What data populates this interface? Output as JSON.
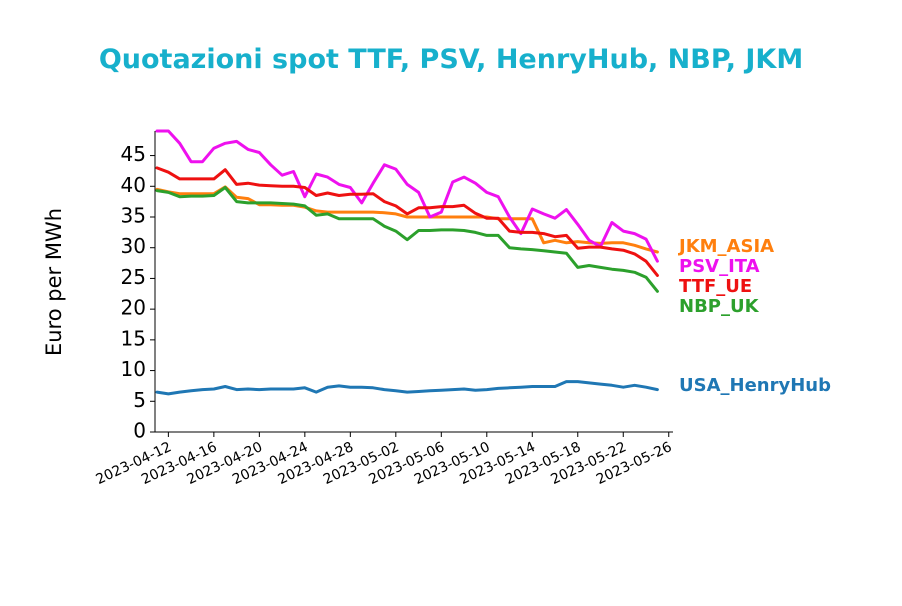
{
  "chart_data": {
    "type": "line",
    "title": "Quotazioni spot TTF, PSV, HenryHub, NBP, JKM",
    "title_color": "#17b0cc",
    "xlabel": "",
    "ylabel": "Euro per MWh",
    "ylim": [
      0,
      49
    ],
    "xlim": [
      "2023-04-11",
      "2023-05-26"
    ],
    "yticks": [
      0,
      5,
      10,
      15,
      20,
      25,
      30,
      35,
      40,
      45
    ],
    "xticks": [
      "2023-04-12",
      "2023-04-16",
      "2023-04-20",
      "2023-04-24",
      "2023-04-28",
      "2023-05-02",
      "2023-05-06",
      "2023-05-10",
      "2023-05-14",
      "2023-05-18",
      "2023-05-22",
      "2023-05-26"
    ],
    "grid": false,
    "legend": "labels at line ends (right)",
    "x": [
      "2023-04-11",
      "2023-04-12",
      "2023-04-13",
      "2023-04-14",
      "2023-04-15",
      "2023-04-16",
      "2023-04-17",
      "2023-04-18",
      "2023-04-19",
      "2023-04-20",
      "2023-04-21",
      "2023-04-22",
      "2023-04-23",
      "2023-04-24",
      "2023-04-25",
      "2023-04-26",
      "2023-04-27",
      "2023-04-28",
      "2023-04-29",
      "2023-04-30",
      "2023-05-01",
      "2023-05-02",
      "2023-05-03",
      "2023-05-04",
      "2023-05-05",
      "2023-05-06",
      "2023-05-07",
      "2023-05-08",
      "2023-05-09",
      "2023-05-10",
      "2023-05-11",
      "2023-05-12",
      "2023-05-13",
      "2023-05-14",
      "2023-05-15",
      "2023-05-16",
      "2023-05-17",
      "2023-05-18",
      "2023-05-19",
      "2023-05-20",
      "2023-05-21",
      "2023-05-22",
      "2023-05-23",
      "2023-05-24",
      "2023-05-25"
    ],
    "series": [
      {
        "name": "JKM_ASIA",
        "color": "#ff7f0e",
        "values": [
          39.5,
          39.1,
          38.8,
          38.8,
          38.8,
          38.8,
          39.9,
          38.2,
          38.0,
          37.0,
          37.0,
          36.9,
          36.9,
          36.6,
          36.0,
          35.8,
          35.8,
          35.8,
          35.8,
          35.8,
          35.7,
          35.5,
          35.0,
          35.0,
          35.0,
          35.0,
          35.0,
          35.0,
          35.0,
          35.0,
          34.7,
          34.7,
          34.7,
          34.7,
          30.8,
          31.2,
          30.8,
          31.0,
          30.8,
          30.7,
          30.8,
          30.8,
          30.4,
          29.8,
          29.3
        ]
      },
      {
        "name": "PSV_ITA",
        "color": "#ee11ee",
        "values": [
          49.0,
          49.0,
          47.0,
          44.0,
          44.0,
          46.2,
          47.0,
          47.3,
          46.0,
          45.5,
          43.5,
          41.8,
          42.4,
          38.3,
          42.0,
          41.5,
          40.3,
          39.8,
          37.3,
          40.5,
          43.5,
          42.8,
          40.3,
          39.0,
          35.0,
          35.8,
          40.7,
          41.5,
          40.5,
          39.0,
          38.3,
          35.0,
          32.3,
          36.3,
          35.5,
          34.8,
          36.2,
          33.8,
          31.2,
          30.2,
          34.1,
          32.7,
          32.3,
          31.4,
          27.8
        ]
      },
      {
        "name": "TTF_UE",
        "color": "#ee1111",
        "values": [
          43.0,
          42.3,
          41.2,
          41.2,
          41.2,
          41.2,
          42.7,
          40.3,
          40.5,
          40.2,
          40.1,
          40.0,
          40.0,
          39.8,
          38.5,
          38.9,
          38.5,
          38.7,
          38.7,
          38.8,
          37.5,
          36.8,
          35.5,
          36.5,
          36.5,
          36.7,
          36.7,
          36.9,
          35.6,
          34.8,
          34.8,
          32.7,
          32.5,
          32.5,
          32.3,
          31.8,
          32.0,
          29.9,
          30.1,
          30.1,
          29.8,
          29.6,
          29.0,
          27.8,
          25.5
        ]
      },
      {
        "name": "NBP_UK",
        "color": "#2ca02c",
        "values": [
          39.3,
          39.0,
          38.3,
          38.4,
          38.4,
          38.5,
          39.8,
          37.5,
          37.3,
          37.3,
          37.3,
          37.2,
          37.1,
          36.8,
          35.3,
          35.5,
          34.7,
          34.7,
          34.7,
          34.7,
          33.5,
          32.7,
          31.3,
          32.8,
          32.8,
          32.9,
          32.9,
          32.8,
          32.5,
          32.0,
          32.0,
          30.0,
          29.8,
          29.7,
          29.5,
          29.3,
          29.1,
          26.8,
          27.1,
          26.8,
          26.5,
          26.3,
          26.0,
          25.2,
          22.9
        ]
      },
      {
        "name": "USA_HenryHub",
        "color": "#1f77b4",
        "values": [
          6.5,
          6.2,
          6.5,
          6.7,
          6.9,
          7.0,
          7.4,
          6.9,
          7.0,
          6.9,
          7.0,
          7.0,
          7.0,
          7.2,
          6.5,
          7.3,
          7.5,
          7.3,
          7.3,
          7.2,
          6.9,
          6.7,
          6.5,
          6.6,
          6.7,
          6.8,
          6.9,
          7.0,
          6.8,
          6.9,
          7.1,
          7.2,
          7.3,
          7.4,
          7.4,
          7.4,
          8.2,
          8.2,
          8.0,
          7.8,
          7.6,
          7.3,
          7.6,
          7.3,
          6.9
        ]
      }
    ]
  }
}
